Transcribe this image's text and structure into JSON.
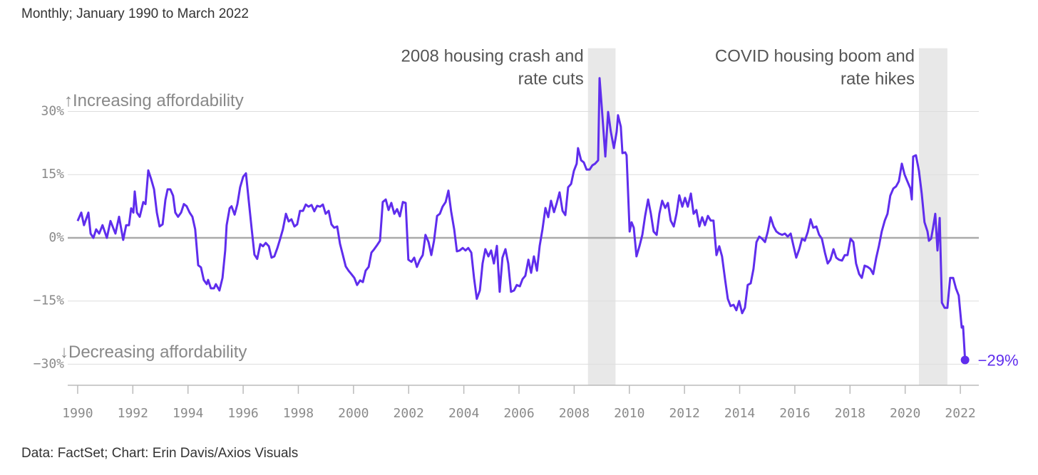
{
  "chart_data": {
    "type": "line",
    "subtitle": "Monthly; January 1990 to March 2022",
    "source": "Data: FactSet; Chart: Erin Davis/Axios Visuals",
    "y_top_label": "↑Increasing affordability",
    "y_bottom_label": "↓Decreasing affordability",
    "end_label": "−29%",
    "color": "#5f2ded",
    "shaded": [
      {
        "start": 2008.5,
        "end": 2009.5,
        "label": [
          "2008 housing crash and",
          "rate cuts"
        ]
      },
      {
        "start": 2020.5,
        "end": 2021.53,
        "label": [
          "COVID housing boom and",
          "rate hikes"
        ]
      }
    ],
    "xlim": [
      1989.64,
      2022.67
    ],
    "xticks": [
      1990,
      1992,
      1994,
      1996,
      1998,
      2000,
      2002,
      2004,
      2006,
      2008,
      2010,
      2012,
      2014,
      2016,
      2018,
      2020,
      2022
    ],
    "ylim": [
      -35,
      45
    ],
    "yticks": [
      {
        "value": -30,
        "label": "−30%"
      },
      {
        "value": -15,
        "label": "−15%"
      },
      {
        "value": 0,
        "label": "0%"
      },
      {
        "value": 15,
        "label": "15%"
      },
      {
        "value": 30,
        "label": "30%"
      }
    ],
    "grid": true,
    "x": [
      1990.0,
      1990.13,
      1990.23,
      1990.39,
      1990.47,
      1990.57,
      1990.67,
      1990.78,
      1990.9,
      1991.06,
      1991.19,
      1991.37,
      1991.5,
      1991.65,
      1991.76,
      1991.86,
      1991.94,
      1992.02,
      1992.07,
      1992.15,
      1992.25,
      1992.38,
      1992.46,
      1992.56,
      1992.66,
      1992.77,
      1992.87,
      1992.97,
      1993.08,
      1993.18,
      1993.26,
      1993.36,
      1993.46,
      1993.54,
      1993.64,
      1993.75,
      1993.85,
      1993.95,
      1994.06,
      1994.16,
      1994.26,
      1994.37,
      1994.47,
      1994.57,
      1994.68,
      1994.73,
      1994.83,
      1994.94,
      1995.01,
      1995.14,
      1995.25,
      1995.35,
      1995.4,
      1995.51,
      1995.58,
      1995.69,
      1995.79,
      1995.89,
      1996.0,
      1996.1,
      1996.2,
      1996.31,
      1996.41,
      1996.51,
      1996.62,
      1996.72,
      1996.82,
      1996.93,
      1997.03,
      1997.13,
      1997.24,
      1997.34,
      1997.44,
      1997.55,
      1997.65,
      1997.75,
      1997.86,
      1997.96,
      1998.06,
      1998.17,
      1998.27,
      1998.37,
      1998.48,
      1998.58,
      1998.68,
      1998.79,
      1998.89,
      1998.99,
      1999.1,
      1999.2,
      1999.3,
      1999.41,
      1999.51,
      1999.61,
      1999.72,
      1999.82,
      1999.92,
      2000.03,
      2000.13,
      2000.24,
      2000.34,
      2000.44,
      2000.55,
      2000.65,
      2000.75,
      2000.86,
      2000.96,
      2001.06,
      2001.17,
      2001.27,
      2001.37,
      2001.48,
      2001.58,
      2001.68,
      2001.79,
      2001.89,
      2001.99,
      2002.1,
      2002.2,
      2002.3,
      2002.41,
      2002.51,
      2002.61,
      2002.72,
      2002.82,
      2002.92,
      2003.03,
      2003.13,
      2003.23,
      2003.34,
      2003.44,
      2003.54,
      2003.65,
      2003.75,
      2003.85,
      2003.96,
      2004.06,
      2004.16,
      2004.27,
      2004.37,
      2004.47,
      2004.58,
      2004.68,
      2004.78,
      2004.89,
      2004.99,
      2005.09,
      2005.2,
      2005.3,
      2005.4,
      2005.51,
      2005.61,
      2005.71,
      2005.82,
      2005.92,
      2006.03,
      2006.13,
      2006.23,
      2006.34,
      2006.44,
      2006.54,
      2006.65,
      2006.75,
      2006.85,
      2006.96,
      2007.06,
      2007.16,
      2007.27,
      2007.37,
      2007.47,
      2007.58,
      2007.68,
      2007.78,
      2007.89,
      2007.99,
      2008.09,
      2008.14,
      2008.25,
      2008.35,
      2008.45,
      2008.56,
      2008.66,
      2008.76,
      2008.87,
      2008.92,
      2009.0,
      2009.13,
      2009.23,
      2009.33,
      2009.44,
      2009.54,
      2009.59,
      2009.69,
      2009.75,
      2009.85,
      2009.9,
      2010.01,
      2010.08,
      2010.16,
      2010.26,
      2010.37,
      2010.47,
      2010.57,
      2010.68,
      2010.78,
      2010.88,
      2010.99,
      2011.09,
      2011.19,
      2011.3,
      2011.4,
      2011.5,
      2011.61,
      2011.71,
      2011.81,
      2011.92,
      2012.02,
      2012.12,
      2012.23,
      2012.33,
      2012.43,
      2012.54,
      2012.64,
      2012.74,
      2012.85,
      2012.95,
      2013.05,
      2013.16,
      2013.26,
      2013.36,
      2013.47,
      2013.57,
      2013.67,
      2013.78,
      2013.88,
      2013.98,
      2014.09,
      2014.19,
      2014.29,
      2014.4,
      2014.5,
      2014.61,
      2014.71,
      2014.81,
      2014.92,
      2015.02,
      2015.12,
      2015.23,
      2015.33,
      2015.43,
      2015.54,
      2015.64,
      2015.74,
      2015.85,
      2015.95,
      2016.05,
      2016.16,
      2016.26,
      2016.36,
      2016.47,
      2016.57,
      2016.67,
      2016.78,
      2016.88,
      2016.98,
      2017.09,
      2017.19,
      2017.29,
      2017.4,
      2017.5,
      2017.6,
      2017.71,
      2017.81,
      2017.91,
      2018.02,
      2018.12,
      2018.22,
      2018.33,
      2018.43,
      2018.53,
      2018.64,
      2018.74,
      2018.84,
      2018.95,
      2019.05,
      2019.15,
      2019.26,
      2019.36,
      2019.46,
      2019.57,
      2019.67,
      2019.77,
      2019.88,
      2019.98,
      2020.08,
      2020.19,
      2020.24,
      2020.29,
      2020.39,
      2020.5,
      2020.6,
      2020.7,
      2020.81,
      2020.86,
      2020.94,
      2021.01,
      2021.09,
      2021.17,
      2021.25,
      2021.33,
      2021.43,
      2021.53,
      2021.63,
      2021.74,
      2021.84,
      2021.94,
      2022.05,
      2022.1,
      2022.17
    ],
    "values": [
      4,
      6,
      3,
      6,
      1,
      0,
      2,
      1,
      3,
      0,
      4,
      1,
      5,
      -0.5,
      3,
      3,
      7,
      6,
      11,
      6,
      5,
      8.5,
      8,
      16,
      14,
      11.5,
      6,
      2.7,
      3.2,
      9,
      11.5,
      11.5,
      10,
      6,
      5,
      6,
      8,
      7.5,
      6,
      5,
      2,
      -6.5,
      -7,
      -10,
      -11,
      -10,
      -12,
      -12,
      -11,
      -12.5,
      -9.5,
      -3,
      3,
      7,
      7.5,
      5.5,
      8,
      12,
      14.5,
      15.3,
      9,
      2,
      -4,
      -5,
      -1.5,
      -2,
      -1.2,
      -2,
      -4.7,
      -4.4,
      -2.4,
      -0.3,
      2,
      5.7,
      3.9,
      4.4,
      2.7,
      3.2,
      6.4,
      6.4,
      7.9,
      7.4,
      7.8,
      6.3,
      7.6,
      7.4,
      7.9,
      5.7,
      6.4,
      3.2,
      2.4,
      2.7,
      -1.4,
      -4,
      -6.8,
      -7.8,
      -8.6,
      -9.5,
      -11.2,
      -10.1,
      -10.5,
      -7.8,
      -6.9,
      -3.5,
      -2.7,
      -1.7,
      -0.7,
      8.5,
      9.1,
      6.6,
      8.3,
      5.7,
      6.8,
      5.1,
      8.5,
      8.3,
      -5.2,
      -5.7,
      -4.7,
      -6.9,
      -5.2,
      -4.1,
      0.7,
      -1,
      -4.1,
      -0.7,
      5.2,
      5.7,
      7.4,
      8.5,
      11.2,
      6.3,
      2,
      -3.2,
      -3,
      -2.4,
      -3,
      -2.4,
      -3.5,
      -9.5,
      -14.5,
      -12.5,
      -6.1,
      -2.7,
      -4.4,
      -3,
      -6.1,
      -1.9,
      -12.8,
      -4.7,
      -2.7,
      -6.1,
      -12.8,
      -12.5,
      -11.2,
      -11.5,
      -9.8,
      -9,
      -5.2,
      -8.3,
      -4.4,
      -7.8,
      -1.9,
      2,
      7.1,
      4.9,
      8.8,
      6.1,
      8.3,
      10.8,
      6.4,
      5.4,
      12,
      12.8,
      15.9,
      17.6,
      21.3,
      18.4,
      17.9,
      16.2,
      16.2,
      17.2,
      17.6,
      18.4,
      37.9,
      31,
      19.3,
      29.9,
      25.2,
      21.3,
      25.2,
      29.1,
      26.4,
      20.1,
      20.3,
      19.6,
      1.5,
      3.7,
      2.4,
      -4.4,
      -1.9,
      0.7,
      5.1,
      9.1,
      5.7,
      1.5,
      0.7,
      5.7,
      8.8,
      7.1,
      8.3,
      4.1,
      2.7,
      5.7,
      10.1,
      7.4,
      9.5,
      7.4,
      10.5,
      5.7,
      6.6,
      2.7,
      4.9,
      3,
      5.2,
      4.1,
      4.1,
      -4.1,
      -2,
      -4.4,
      -9.8,
      -14.5,
      -16.2,
      -15.9,
      -17.2,
      -15,
      -17.9,
      -16.6,
      -11.2,
      -10.8,
      -7.4,
      -1,
      0.3,
      -0.2,
      -1,
      1.5,
      4.9,
      2.7,
      1.5,
      1,
      0.7,
      1,
      0.3,
      1,
      -1.9,
      -4.7,
      -2.7,
      -0.2,
      -0.7,
      1.4,
      4.4,
      2.4,
      2.7,
      0.7,
      -0.2,
      -3.5,
      -6.1,
      -5.2,
      -2.7,
      -4.7,
      -5.2,
      -5.4,
      -4.1,
      -4.1,
      -0.2,
      -1,
      -6.1,
      -8.6,
      -9.5,
      -6.6,
      -6.9,
      -7.4,
      -8.6,
      -4.7,
      -1.9,
      1.5,
      4.1,
      5.7,
      10,
      11.7,
      12.2,
      13.4,
      17.6,
      15,
      13.4,
      11.7,
      9.1,
      19.3,
      19.6,
      15.9,
      10.5,
      3.7,
      1.5,
      -0.7,
      -0.2,
      2.4,
      5.7,
      -3,
      4.7,
      -15.4,
      -16.6,
      -16.6,
      -9.5,
      -9.5,
      -12,
      -13.7,
      -21.3,
      -21,
      -29
    ]
  }
}
